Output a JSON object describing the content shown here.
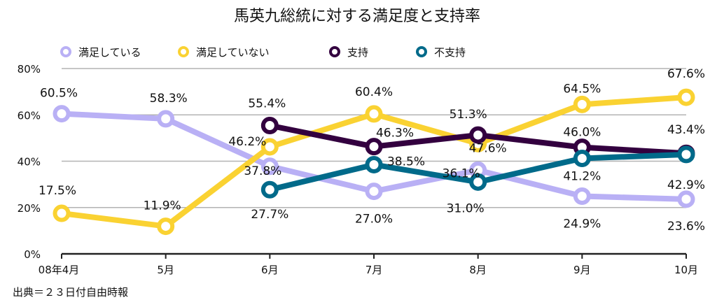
{
  "chart_data": {
    "type": "line",
    "title": "馬英九総統に対する満足度と支持率",
    "categories": [
      "08年4月",
      "5月",
      "6月",
      "7月",
      "8月",
      "9月",
      "10月"
    ],
    "ylim": [
      0,
      80
    ],
    "yticks": [
      "0%",
      "20%",
      "40%",
      "60%",
      "80%"
    ],
    "grid": true,
    "legend_position": "top",
    "series": [
      {
        "name": "満足している",
        "color": "#b9b0f5",
        "values": [
          60.5,
          58.3,
          37.8,
          27.0,
          36.1,
          24.9,
          23.6
        ],
        "labels": [
          "60.5%",
          "58.3%",
          "37.8%",
          "27.0%",
          "36.1%",
          "24.9%",
          "23.6%"
        ]
      },
      {
        "name": "満足していない",
        "color": "#fad232",
        "values": [
          17.5,
          11.9,
          46.2,
          60.4,
          47.6,
          64.5,
          67.6
        ],
        "labels": [
          "17.5%",
          "11.9%",
          "46.2%",
          "60.4%",
          "47.6%",
          "64.5%",
          "67.6%"
        ]
      },
      {
        "name": "支持",
        "color": "#33003f",
        "values": [
          null,
          null,
          55.4,
          46.3,
          51.3,
          46.0,
          43.4
        ],
        "labels": [
          null,
          null,
          "55.4%",
          "46.3%",
          "51.3%",
          "46.0%",
          "43.4%"
        ]
      },
      {
        "name": "不支持",
        "color": "#006a8a",
        "values": [
          null,
          null,
          27.7,
          38.5,
          31.0,
          41.2,
          42.9
        ],
        "labels": [
          null,
          null,
          "27.7%",
          "38.5%",
          "31.0%",
          "41.2%",
          "42.9%"
        ]
      }
    ],
    "source": "出典＝２３日付自由時報"
  }
}
